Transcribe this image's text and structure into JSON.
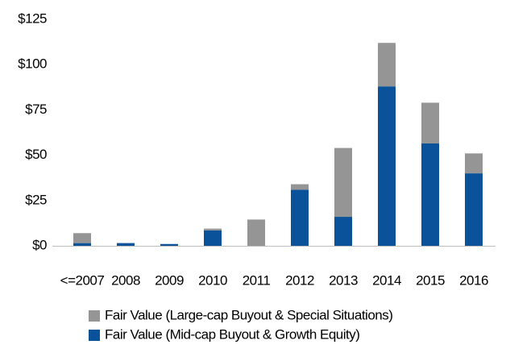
{
  "chart_data": {
    "type": "stacked_bar",
    "categories": [
      "<=2007",
      "2008",
      "2009",
      "2010",
      "2011",
      "2012",
      "2013",
      "2014",
      "2015",
      "2016"
    ],
    "series": [
      {
        "name": "Fair Value (Mid-cap Buyout & Growth Equity)",
        "color": "#0a539b",
        "values": [
          1.5,
          1.5,
          1,
          8.5,
          0,
          31,
          16,
          88,
          56.5,
          40
        ]
      },
      {
        "name": "Fair Value (Large-cap Buyout & Special Situations)",
        "color": "#959595",
        "values": [
          5.5,
          0,
          0,
          1,
          14.5,
          3,
          38,
          24,
          22.5,
          11
        ]
      }
    ],
    "ylim": [
      0,
      125
    ],
    "yticks": [
      {
        "value": 0,
        "label": "$0"
      },
      {
        "value": 25,
        "label": "$25"
      },
      {
        "value": 50,
        "label": "$50"
      },
      {
        "value": 75,
        "label": "$75"
      },
      {
        "value": 100,
        "label": "$100"
      },
      {
        "value": 125,
        "label": "$125"
      }
    ],
    "grid": false
  }
}
